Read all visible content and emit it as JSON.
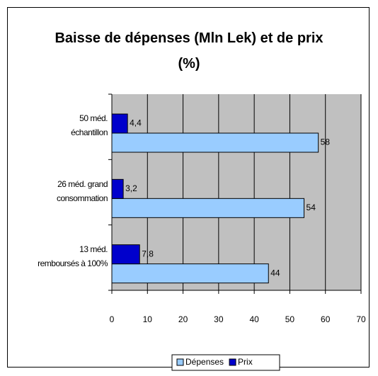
{
  "chart_data": {
    "type": "bar",
    "orientation": "horizontal",
    "title": "Baisse de dépenses (Mln Lek) et de prix (%)",
    "categories": [
      "50 méd.\néchantillon",
      "26 méd. grand\nconsommation",
      "13 méd.\nremboursés à 100%"
    ],
    "series": [
      {
        "name": "Dépenses",
        "color": "#99ccff",
        "values": [
          58,
          54,
          44
        ]
      },
      {
        "name": "Prix",
        "color": "#0000cc",
        "values": [
          4.4,
          3.2,
          7.8
        ],
        "value_labels": [
          "4,4",
          "3,2",
          "7,8"
        ]
      }
    ],
    "xlim": [
      0,
      70
    ],
    "xticks": [
      0,
      10,
      20,
      30,
      40,
      50,
      60,
      70
    ],
    "grid": true,
    "legend": "bottom"
  }
}
